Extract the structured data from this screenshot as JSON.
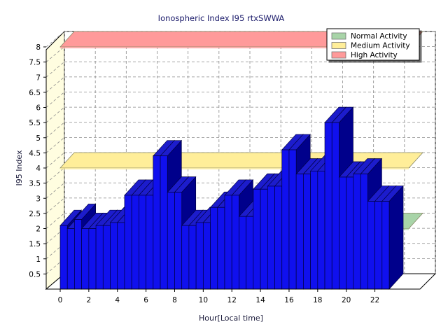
{
  "chart_data": {
    "type": "bar",
    "title": "Ionospheric Index I95 rtxSWWA",
    "xlabel": "Hour[Local time]",
    "ylabel": "I95 Index",
    "ylim": [
      0,
      8
    ],
    "y_ticks": [
      "0.5",
      "1",
      "1.5",
      "2",
      "2.5",
      "3",
      "3.5",
      "4",
      "4.5",
      "5",
      "5.5",
      "6",
      "6.5",
      "7",
      "7.5",
      "8"
    ],
    "x_ticks": [
      "0",
      "2",
      "4",
      "6",
      "8",
      "10",
      "12",
      "14",
      "16",
      "18",
      "20",
      "22"
    ],
    "x_tick_values": [
      0,
      2,
      4,
      6,
      8,
      10,
      12,
      14,
      16,
      18,
      20,
      22
    ],
    "categories": [
      0,
      0.5,
      1,
      1.5,
      2,
      2.5,
      3,
      3.5,
      4,
      4.5,
      5,
      5.5,
      6,
      6.5,
      7,
      7.5,
      8,
      8.5,
      9,
      9.5,
      10,
      10.5,
      11,
      11.5,
      12,
      12.5,
      13,
      13.5,
      14,
      14.5,
      15,
      15.5,
      16,
      16.5,
      17,
      17.5,
      18,
      18.5,
      19,
      19.5,
      20,
      20.5,
      21,
      21.5,
      22,
      22.5
    ],
    "values": [
      2.1,
      2.0,
      2.3,
      2.0,
      2.0,
      2.1,
      2.1,
      2.2,
      2.2,
      3.1,
      3.1,
      3.1,
      3.1,
      4.4,
      4.4,
      3.2,
      3.2,
      2.1,
      2.1,
      2.2,
      2.2,
      2.7,
      2.7,
      3.1,
      3.1,
      2.4,
      2.4,
      3.3,
      3.3,
      3.4,
      3.4,
      4.6,
      4.6,
      3.8,
      3.8,
      3.9,
      3.9,
      5.5,
      5.5,
      3.7,
      3.7,
      3.8,
      3.8,
      2.9,
      2.9,
      2.9
    ],
    "bar_color": "#1010ee",
    "bar_side_color": "#00008b",
    "bar_top_color": "#1c1ccc",
    "thresholds": [
      {
        "name": "Normal Activity",
        "value": 2,
        "color": "#a8d4a8"
      },
      {
        "name": "Medium Activity",
        "value": 4,
        "color": "#ffee99"
      },
      {
        "name": "High Activity",
        "value": 8,
        "color": "#ff9a9a"
      }
    ],
    "legend_position": "top-right",
    "grid": true
  }
}
